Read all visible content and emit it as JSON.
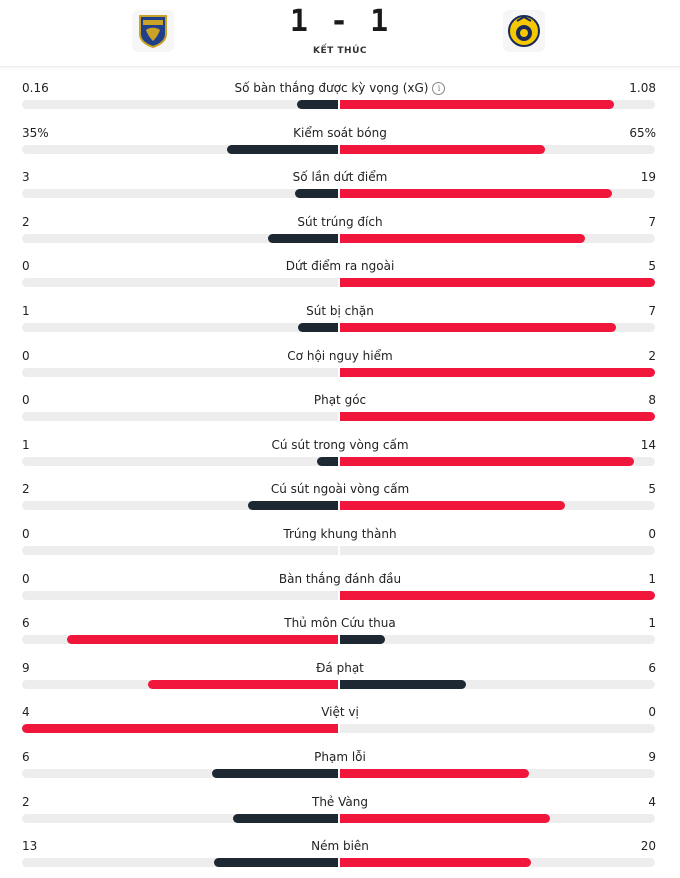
{
  "match": {
    "score": "1 - 1",
    "status": "KẾT THÚC",
    "home_logo_icon": "crest-shield-icon",
    "away_logo_icon": "crest-ball-icon"
  },
  "colors": {
    "leader": "#f0163c",
    "trailer": "#1d2833",
    "track": "#ededed"
  },
  "stats": [
    {
      "label": "Số bàn thắng được kỳ vọng (xG)",
      "home": "0.16",
      "away": "1.08",
      "home_value": 0.16,
      "away_value": 1.08,
      "info": "i"
    },
    {
      "label": "Kiểm soát bóng",
      "home": "35%",
      "away": "65%",
      "home_value": 35,
      "away_value": 65
    },
    {
      "label": "Số lần dứt điểm",
      "home": "3",
      "away": "19",
      "home_value": 3,
      "away_value": 19
    },
    {
      "label": "Sút trúng đích",
      "home": "2",
      "away": "7",
      "home_value": 2,
      "away_value": 7
    },
    {
      "label": "Dứt điểm ra ngoài",
      "home": "0",
      "away": "5",
      "home_value": 0,
      "away_value": 5
    },
    {
      "label": "Sút bị chặn",
      "home": "1",
      "away": "7",
      "home_value": 1,
      "away_value": 7
    },
    {
      "label": "Cơ hội nguy hiểm",
      "home": "0",
      "away": "2",
      "home_value": 0,
      "away_value": 2
    },
    {
      "label": "Phạt góc",
      "home": "0",
      "away": "8",
      "home_value": 0,
      "away_value": 8
    },
    {
      "label": "Cú sút trong vòng cấm",
      "home": "1",
      "away": "14",
      "home_value": 1,
      "away_value": 14
    },
    {
      "label": "Cú sút ngoài vòng cấm",
      "home": "2",
      "away": "5",
      "home_value": 2,
      "away_value": 5
    },
    {
      "label": "Trúng khung thành",
      "home": "0",
      "away": "0",
      "home_value": 0,
      "away_value": 0
    },
    {
      "label": "Bàn thắng đánh đầu",
      "home": "0",
      "away": "1",
      "home_value": 0,
      "away_value": 1
    },
    {
      "label": "Thủ môn Cứu thua",
      "home": "6",
      "away": "1",
      "home_value": 6,
      "away_value": 1
    },
    {
      "label": "Đá phạt",
      "home": "9",
      "away": "6",
      "home_value": 9,
      "away_value": 6
    },
    {
      "label": "Việt vị",
      "home": "4",
      "away": "0",
      "home_value": 4,
      "away_value": 0
    },
    {
      "label": "Phạm lỗi",
      "home": "6",
      "away": "9",
      "home_value": 6,
      "away_value": 9
    },
    {
      "label": "Thẻ Vàng",
      "home": "2",
      "away": "4",
      "home_value": 2,
      "away_value": 4
    },
    {
      "label": "Ném biên",
      "home": "13",
      "away": "20",
      "home_value": 13,
      "away_value": 20
    }
  ]
}
